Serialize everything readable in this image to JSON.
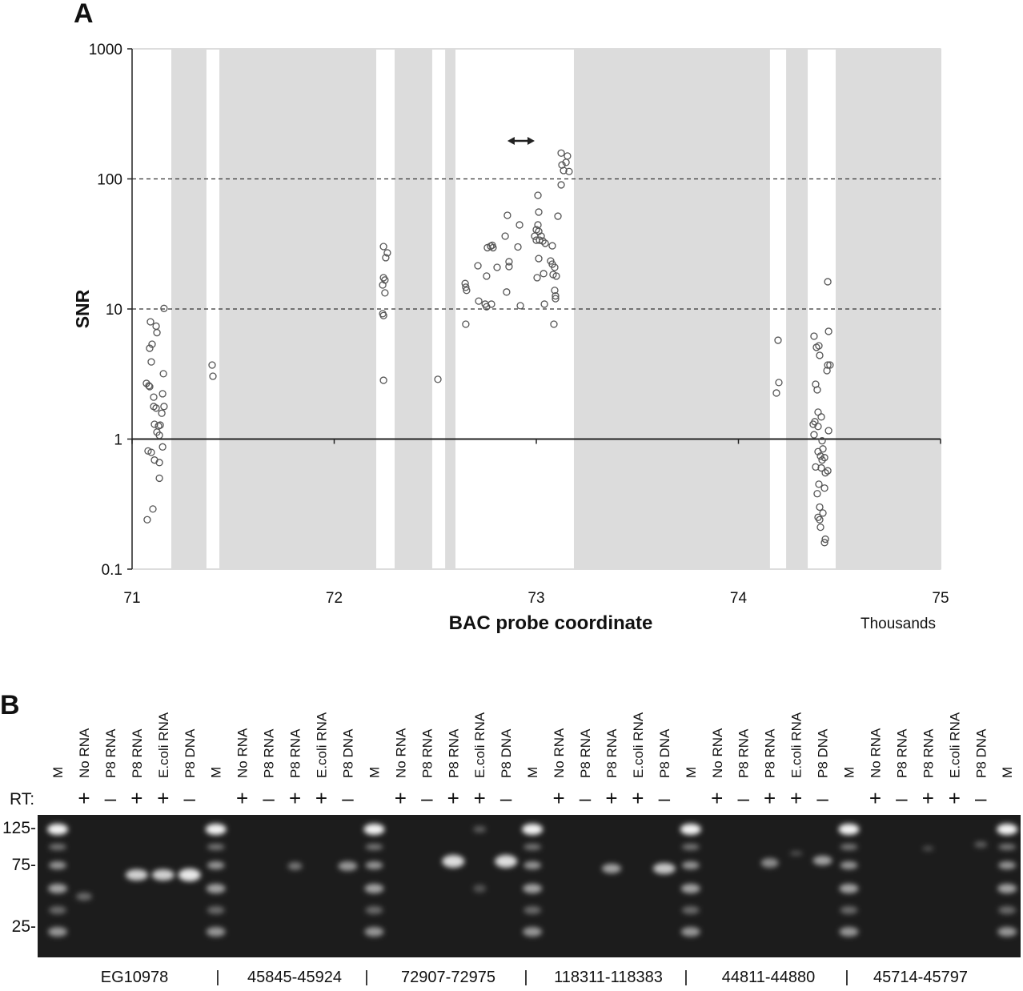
{
  "chart_data": {
    "type": "scatter",
    "panel_label": "A",
    "ylabel": "SNR",
    "xlabel": "BAC probe coordinate",
    "x_unit": "Thousands",
    "log_y": true,
    "grid": false,
    "xlim": [
      71,
      75
    ],
    "xticks": [
      71,
      72,
      73,
      74,
      75
    ],
    "ylim": [
      0.1,
      1000
    ],
    "yticks": [
      0.1,
      1,
      10,
      100,
      1000
    ],
    "color": "#555555",
    "shade_color": "#dcdcdc",
    "shaded_regions": [
      [
        71.194,
        71.368
      ],
      [
        71.432,
        72.208
      ],
      [
        72.299,
        72.485
      ],
      [
        72.549,
        72.6
      ],
      [
        73.186,
        74.156
      ],
      [
        74.236,
        74.343
      ],
      [
        74.481,
        75
      ]
    ],
    "reference_lines": [
      {
        "value": 100,
        "dashed": true
      },
      {
        "value": 10,
        "dashed": true
      },
      {
        "value": 1,
        "dashed": false
      }
    ],
    "arrow": {
      "x": [
        72.857,
        72.992
      ],
      "y": 196
    },
    "x": [
      71.091,
      71.119,
      71.123,
      71.158,
      71.099,
      71.087,
      71.095,
      71.155,
      71.071,
      71.083,
      71.087,
      71.151,
      71.107,
      71.107,
      71.158,
      71.119,
      71.147,
      71.111,
      71.131,
      71.139,
      71.123,
      71.135,
      71.151,
      71.079,
      71.095,
      71.111,
      71.135,
      71.135,
      71.103,
      71.075,
      71.396,
      71.4,
      72.244,
      72.263,
      72.255,
      72.244,
      72.251,
      72.24,
      72.251,
      72.24,
      72.244,
      72.244,
      72.513,
      72.648,
      72.651,
      72.655,
      72.651,
      72.711,
      72.715,
      72.747,
      72.754,
      72.754,
      72.778,
      72.758,
      72.774,
      72.786,
      72.782,
      72.806,
      72.846,
      72.857,
      72.853,
      72.865,
      72.865,
      72.909,
      72.917,
      72.921,
      73.008,
      73.012,
      73.008,
      73.0,
      73.012,
      73.024,
      72.992,
      73.0,
      73.016,
      73.032,
      73.044,
      73.012,
      73.004,
      73.036,
      73.04,
      73.079,
      73.071,
      73.079,
      73.091,
      73.083,
      73.099,
      73.091,
      73.095,
      73.095,
      73.087,
      73.107,
      73.123,
      73.154,
      73.147,
      73.127,
      73.123,
      73.135,
      73.162,
      74.196,
      74.2,
      74.188,
      74.442,
      74.374,
      74.446,
      74.386,
      74.402,
      74.398,
      74.442,
      74.453,
      74.438,
      74.382,
      74.39,
      74.394,
      74.41,
      74.378,
      74.37,
      74.394,
      74.446,
      74.374,
      74.414,
      74.418,
      74.394,
      74.406,
      74.426,
      74.414,
      74.382,
      74.442,
      74.43,
      74.41,
      74.398,
      74.426,
      74.39,
      74.402,
      74.418,
      74.394,
      74.402,
      74.406,
      74.43,
      74.426
    ],
    "values": [
      7.97,
      7.38,
      6.58,
      10.1,
      5.36,
      4.99,
      3.92,
      3.18,
      2.68,
      2.57,
      2.53,
      2.23,
      2.1,
      1.78,
      1.78,
      1.73,
      1.58,
      1.3,
      1.26,
      1.28,
      1.13,
      1.07,
      0.87,
      0.81,
      0.79,
      0.69,
      0.66,
      0.5,
      0.29,
      0.24,
      3.71,
      3.04,
      30.2,
      27,
      24.8,
      17.4,
      16.7,
      15.3,
      13.3,
      9.2,
      8.9,
      2.83,
      2.88,
      15.7,
      14.7,
      13.9,
      7.64,
      21.5,
      11.5,
      10.9,
      10.4,
      17.9,
      10.9,
      29.6,
      30.4,
      29.6,
      30.9,
      20.9,
      36.3,
      52.5,
      13.5,
      23.1,
      21.2,
      30.0,
      44.3,
      10.6,
      74.8,
      55.6,
      44.3,
      40.7,
      39.5,
      36.3,
      36.3,
      33.8,
      33.8,
      33.3,
      32.0,
      24.4,
      17.4,
      18.7,
      10.9,
      30.6,
      23.4,
      22.1,
      20.9,
      18.4,
      17.9,
      13.9,
      12.6,
      12.0,
      7.64,
      51.7,
      158,
      150,
      134,
      128,
      90,
      116,
      114,
      5.75,
      2.72,
      2.26,
      16.2,
      6.18,
      6.73,
      5.07,
      4.4,
      5.21,
      3.71,
      3.71,
      3.36,
      2.64,
      2.39,
      1.61,
      1.48,
      1.36,
      1.3,
      1.25,
      1.16,
      1.08,
      0.97,
      0.84,
      0.8,
      0.74,
      0.72,
      0.69,
      0.61,
      0.57,
      0.55,
      0.6,
      0.45,
      0.42,
      0.38,
      0.3,
      0.27,
      0.25,
      0.24,
      0.21,
      0.17,
      0.16
    ]
  },
  "gel": {
    "panel_label": "B",
    "lanes": [
      "M",
      "No RNA",
      "P8 RNA",
      "P8 RNA",
      "E.coli RNA",
      "P8 DNA",
      "M",
      "No RNA",
      "P8 RNA",
      "P8 RNA",
      "E.coli RNA",
      "P8 DNA",
      "M",
      "No RNA",
      "P8 RNA",
      "P8 RNA",
      "E.coli RNA",
      "P8 DNA",
      "M",
      "No RNA",
      "P8 RNA",
      "P8 RNA",
      "E.coli RNA",
      "P8 DNA",
      "M",
      "No RNA",
      "P8 RNA",
      "P8 RNA",
      "E.coli RNA",
      "P8 DNA",
      "M",
      "No RNA",
      "P8 RNA",
      "P8 RNA",
      "E.coli RNA",
      "P8 DNA",
      "M"
    ],
    "rt_label": "RT:",
    "rt": [
      null,
      "+",
      "–",
      "+",
      "+",
      "–",
      null,
      "+",
      "–",
      "+",
      "+",
      "–",
      null,
      "+",
      "–",
      "+",
      "+",
      "–",
      null,
      "+",
      "–",
      "+",
      "+",
      "–",
      null,
      "+",
      "–",
      "+",
      "+",
      "–",
      null,
      "+",
      "–",
      "+",
      "+",
      "–",
      null
    ],
    "size_markers": [
      "125-",
      "75-",
      "25-"
    ],
    "targets": [
      "EG10978",
      "45845-45924",
      "72907-72975",
      "118311-118383",
      "44811-44880",
      "45714-45797"
    ],
    "separator": "|"
  }
}
